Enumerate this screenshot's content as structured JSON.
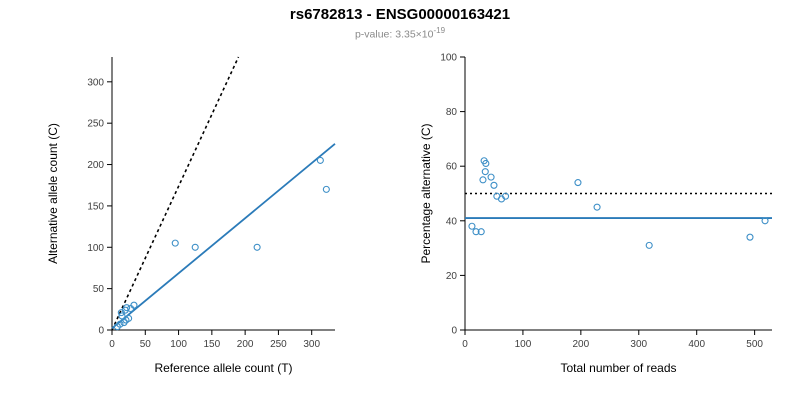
{
  "title": "rs6782813 - ENSG00000163421",
  "subtitle": {
    "prefix": "p-value: 3.35×10",
    "exponent": "-19"
  },
  "colors": {
    "point": "#3d8fc7",
    "fit_line": "#2b7bb9",
    "reference_line": "#000000"
  },
  "chart_data": [
    {
      "type": "scatter",
      "name": "allele-count-scatter",
      "title": "",
      "xlabel": "Reference allele count (T)",
      "ylabel": "Alternative allele count (C)",
      "xlim": [
        0,
        335
      ],
      "ylim": [
        0,
        330
      ],
      "xticks": [
        0,
        50,
        100,
        150,
        200,
        250,
        300
      ],
      "yticks": [
        0,
        50,
        100,
        150,
        200,
        250,
        300
      ],
      "grid": false,
      "legend": "none",
      "points": [
        [
          8,
          4
        ],
        [
          12,
          7
        ],
        [
          14,
          21
        ],
        [
          15,
          17
        ],
        [
          18,
          9
        ],
        [
          20,
          24
        ],
        [
          21,
          12
        ],
        [
          22,
          27
        ],
        [
          25,
          14
        ],
        [
          28,
          26
        ],
        [
          33,
          30
        ],
        [
          95,
          105
        ],
        [
          125,
          100
        ],
        [
          218,
          100
        ],
        [
          313,
          205
        ],
        [
          322,
          170
        ]
      ],
      "lines": [
        {
          "name": "expected-50pct-line",
          "style": "dashed",
          "color_key": "reference_line",
          "x1": 0,
          "y1": 0,
          "x2": 190,
          "y2": 330
        },
        {
          "name": "fit-line",
          "style": "solid",
          "color_key": "fit_line",
          "x1": 0,
          "y1": 2,
          "x2": 335,
          "y2": 225
        }
      ]
    },
    {
      "type": "scatter",
      "name": "percentage-alternative-scatter",
      "title": "",
      "xlabel": "Total number of reads",
      "ylabel": "Percentage alternative (C)",
      "xlim": [
        0,
        530
      ],
      "ylim": [
        0,
        100
      ],
      "xticks": [
        0,
        100,
        200,
        300,
        400,
        500
      ],
      "yticks": [
        0,
        20,
        40,
        60,
        80,
        100
      ],
      "grid": false,
      "legend": "none",
      "points": [
        [
          12,
          38
        ],
        [
          19,
          36
        ],
        [
          28,
          36
        ],
        [
          31,
          55
        ],
        [
          33,
          62
        ],
        [
          35,
          58
        ],
        [
          36,
          61
        ],
        [
          45,
          56
        ],
        [
          50,
          53
        ],
        [
          55,
          49
        ],
        [
          63,
          48
        ],
        [
          70,
          49
        ],
        [
          195,
          54
        ],
        [
          228,
          45
        ],
        [
          318,
          31
        ],
        [
          492,
          34
        ],
        [
          518,
          40
        ]
      ],
      "lines": [
        {
          "name": "expected-50pct-line",
          "style": "dotted",
          "color_key": "reference_line",
          "x1": 0,
          "y1": 50,
          "x2": 530,
          "y2": 50
        },
        {
          "name": "fit-line",
          "style": "solid",
          "color_key": "fit_line",
          "x1": 0,
          "y1": 41,
          "x2": 530,
          "y2": 41
        }
      ]
    }
  ]
}
